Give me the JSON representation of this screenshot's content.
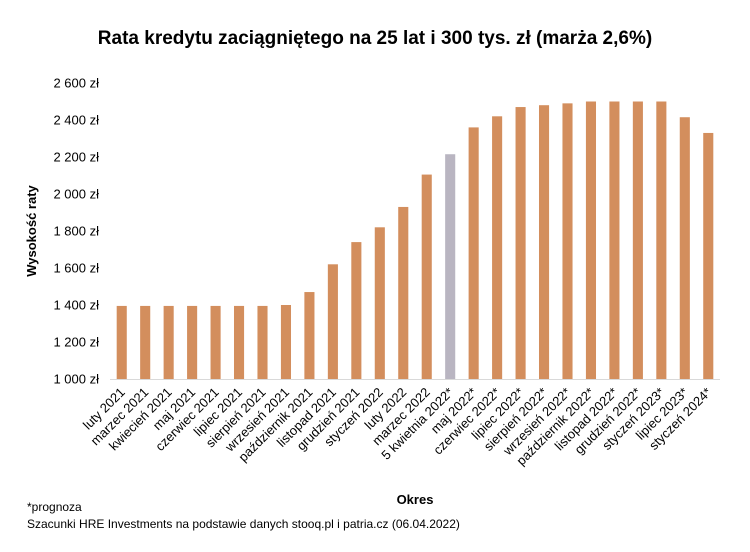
{
  "chart_data": {
    "type": "bar",
    "title": "Rata kredytu zaciągniętego na 25 lat i 300 tys. zł (marża 2,6%)",
    "xlabel": "Okres",
    "ylabel": "Wysokość raty",
    "ylim": [
      1000,
      2600
    ],
    "yticks": [
      1000,
      1200,
      1400,
      1600,
      1800,
      2000,
      2200,
      2400,
      2600
    ],
    "ytick_labels": [
      "1 000 zł",
      "1 200 zł",
      "1 400 zł",
      "1 600 zł",
      "1 800 zł",
      "2 000 zł",
      "2 200 zł",
      "2 400 zł",
      "2 600 zł"
    ],
    "grid": false,
    "categories": [
      "luty 2021",
      "marzec 2021",
      "kwiecień 2021",
      "maj 2021",
      "czerwiec 2021",
      "lipiec 2021",
      "sierpień 2021",
      "wrzesień 2021",
      "październik 2021",
      "listopad 2021",
      "grudzień 2021",
      "styczeń 2022",
      "luty 2022",
      "marzec 2022",
      "5 kwietnia 2022*",
      "maj 2022*",
      "czerwiec 2022*",
      "lipiec 2022*",
      "sierpień 2022*",
      "wrzesień 2022*",
      "październik 2022*",
      "listopad 2022*",
      "grudzień 2022*",
      "styczeń 2023*",
      "lipiec 2023*",
      "styczeń 2024*"
    ],
    "values": [
      1395,
      1395,
      1395,
      1395,
      1395,
      1395,
      1395,
      1400,
      1470,
      1620,
      1740,
      1820,
      1930,
      2105,
      2215,
      2360,
      2420,
      2470,
      2480,
      2490,
      2500,
      2500,
      2500,
      2500,
      2415,
      2330
    ],
    "highlight_index": 14,
    "colors": {
      "bar": "#D38E5D",
      "highlight": "#B9B5C1",
      "axis": "#D9D9D9"
    }
  },
  "footnote": "*prognoza",
  "source": "Szacunki HRE Investments na podstawie danych stooq.pl i patria.cz (06.04.2022)"
}
